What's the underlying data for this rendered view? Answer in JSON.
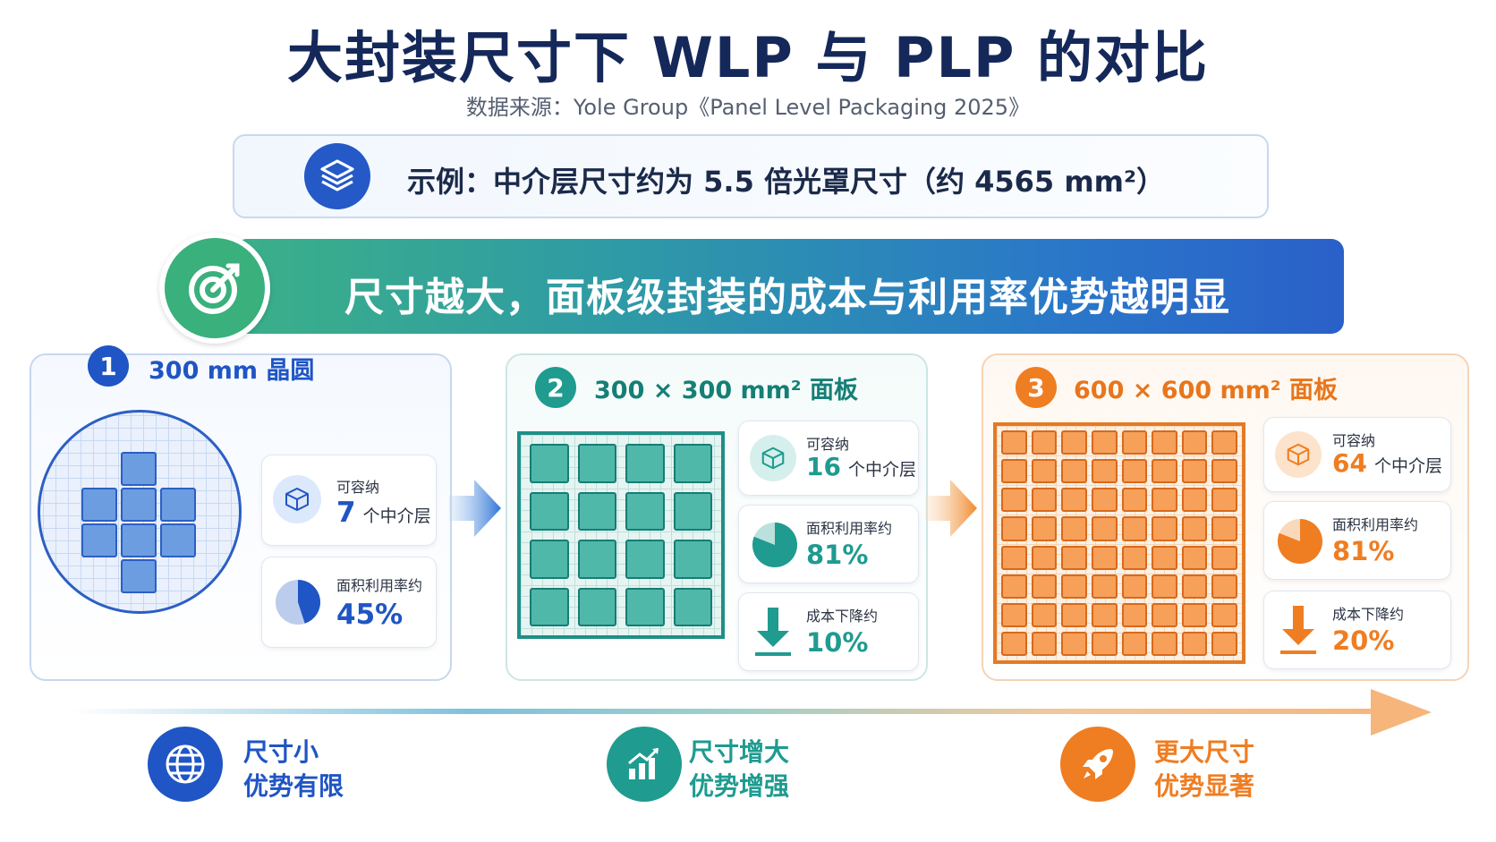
{
  "title": "大封装尺寸下 WLP 与 PLP 的对比",
  "source": "数据来源：Yole Group《Panel Level Packaging 2025》",
  "example": {
    "text": "示例：中介层尺寸约为 5.5 倍光罩尺寸（约 4565 mm²）",
    "icon": "layers-icon"
  },
  "banner": {
    "text": "尺寸越大，面板级封装的成本与利用率优势越明显",
    "icon": "target-icon"
  },
  "colors": {
    "blue": "#1f55c4",
    "teal": "#1f9b90",
    "orange": "#ef7d22",
    "navy": "#15285a"
  },
  "panels": [
    {
      "number": "1",
      "title": "300 mm 晶圆",
      "color": "#1f55c4",
      "capacity_label": "可容纳",
      "capacity_value": "7",
      "capacity_unit": "个中介层",
      "utilization_label": "面积利用率约",
      "utilization_value": "45%",
      "utilization_fraction": 0.45
    },
    {
      "number": "2",
      "title": "300 × 300 mm² 面板",
      "color": "#1f9b90",
      "capacity_label": "可容纳",
      "capacity_value": "16",
      "capacity_unit": "个中介层",
      "utilization_label": "面积利用率约",
      "utilization_value": "81%",
      "utilization_fraction": 0.81,
      "cost_label": "成本下降约",
      "cost_value": "10%"
    },
    {
      "number": "3",
      "title": "600 × 600 mm² 面板",
      "color": "#ef7d22",
      "capacity_label": "可容纳",
      "capacity_value": "64",
      "capacity_unit": "个中介层",
      "utilization_label": "面积利用率约",
      "utilization_value": "81%",
      "utilization_fraction": 0.81,
      "cost_label": "成本下降约",
      "cost_value": "20%"
    }
  ],
  "bottom": [
    {
      "line1": "尺寸小",
      "line2": "优势有限",
      "icon": "globe-icon",
      "color": "#1f55c4"
    },
    {
      "line1": "尺寸增大",
      "line2": "优势增强",
      "icon": "bar-chart-icon",
      "color": "#1f9b90"
    },
    {
      "line1": "更大尺寸",
      "line2": "优势显著",
      "icon": "rocket-icon",
      "color": "#ef7d22"
    }
  ]
}
